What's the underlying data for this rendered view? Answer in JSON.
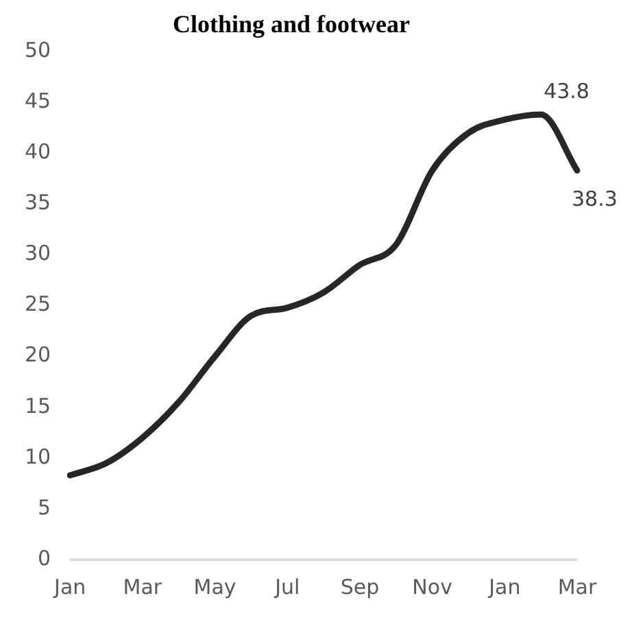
{
  "chart_data": {
    "type": "line",
    "title": "Clothing and footwear",
    "categories": [
      "Jan",
      null,
      "Mar",
      null,
      "May",
      null,
      "Jul",
      null,
      "Sep",
      null,
      "Nov",
      null,
      "Jan",
      null,
      "Mar"
    ],
    "series": [
      {
        "color": "#262626",
        "values": [
          8.3,
          9.5,
          12,
          15.5,
          20,
          24,
          24.8,
          26.3,
          29,
          31,
          38.3,
          42,
          43.3,
          43.8,
          38.3
        ],
        "value_labels": [
          null,
          null,
          null,
          null,
          null,
          null,
          null,
          null,
          null,
          null,
          null,
          null,
          null,
          "43.8",
          "38.3"
        ]
      }
    ],
    "ylim": [
      0,
      50
    ],
    "yticks": [
      0,
      5,
      10,
      15,
      20,
      25,
      30,
      35,
      40,
      45,
      50
    ],
    "grid": false,
    "legend": false,
    "marker": "none",
    "line_style": "solid"
  }
}
